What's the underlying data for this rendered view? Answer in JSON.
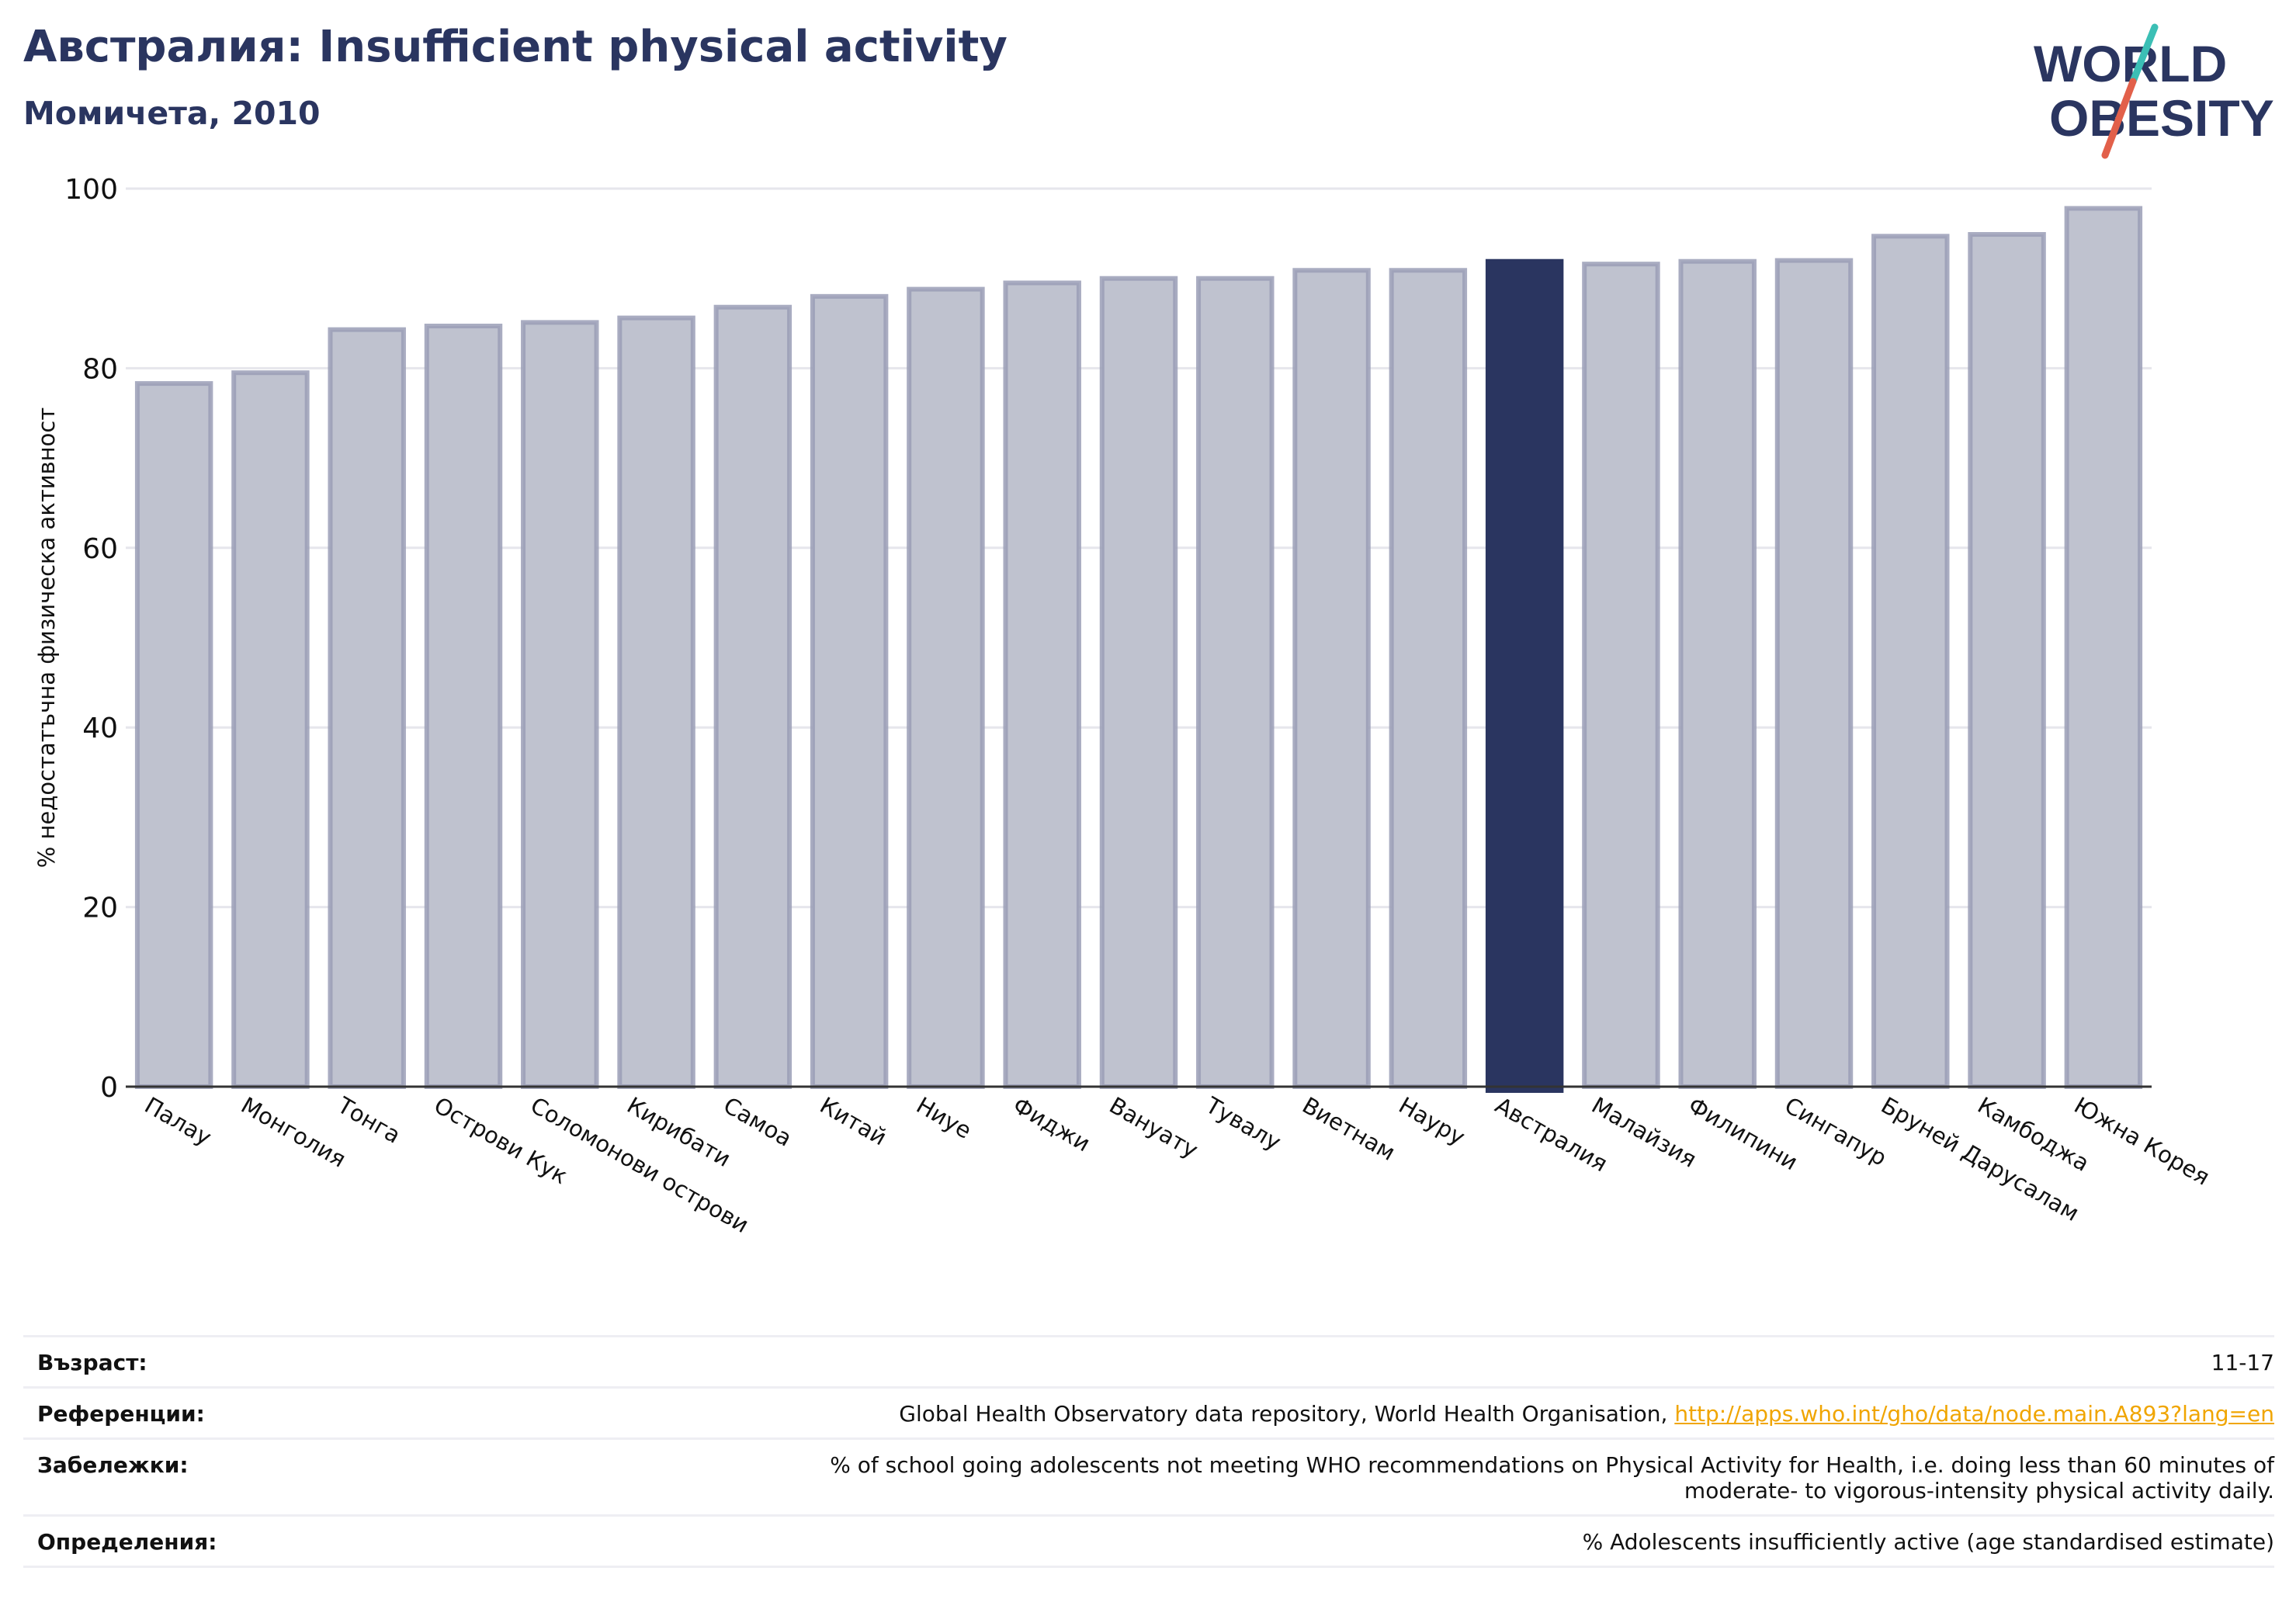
{
  "header": {
    "title": "Австралия: Insufficient physical activity",
    "subtitle": "Момичета, 2010"
  },
  "logo": {
    "line1": "WORLD",
    "line2": "OBESITY",
    "colors": {
      "text": "#2a3560",
      "slash_top": "#3bbfb5",
      "slash_bottom": "#e2604a"
    }
  },
  "colors": {
    "bar": "#bfc2cf",
    "bar_border": "#9a9eb6",
    "highlight": "#2a3560",
    "grid": "#e6e6ec",
    "axis": "#333333"
  },
  "chart_data": {
    "type": "bar",
    "title": "",
    "ylabel": "% недостатъчна физическа активност",
    "xlabel": "",
    "ylim": [
      0,
      100
    ],
    "yticks": [
      0,
      20,
      40,
      60,
      80,
      100
    ],
    "grid": true,
    "highlight_category": "Австралия",
    "categories": [
      "Палау",
      "Монголия",
      "Тонга",
      "Острови Кук",
      "Соломонови острови",
      "Кирибати",
      "Самоа",
      "Китай",
      "Ниуе",
      "Фиджи",
      "Вануату",
      "Тувалу",
      "Виетнам",
      "Науру",
      "Австралия",
      "Малайзия",
      "Филипини",
      "Сингапур",
      "Бруней Дарусалам",
      "Камбоджа",
      "Южна Корея"
    ],
    "values": [
      78.3,
      79.5,
      84.3,
      84.7,
      85.1,
      85.6,
      86.8,
      88.0,
      88.8,
      89.5,
      90.0,
      90.0,
      90.9,
      90.9,
      91.9,
      91.6,
      91.9,
      92.0,
      94.7,
      94.9,
      97.8
    ]
  },
  "meta": [
    {
      "label": "Възраст:",
      "value": "11-17"
    },
    {
      "label": "Референции:",
      "value": "Global Health Observatory data repository, World Health Organisation, ",
      "link": "http://apps.who.int/gho/data/node.main.A893?lang=en"
    },
    {
      "label": "Забележки:",
      "value": "% of school going adolescents not meeting WHO recommendations on Physical Activity for Health, i.e. doing less than 60 minutes of moderate- to vigorous-intensity physical activity daily."
    },
    {
      "label": "Определения:",
      "value": "% Adolescents insufficiently active (age standardised estimate)"
    }
  ]
}
